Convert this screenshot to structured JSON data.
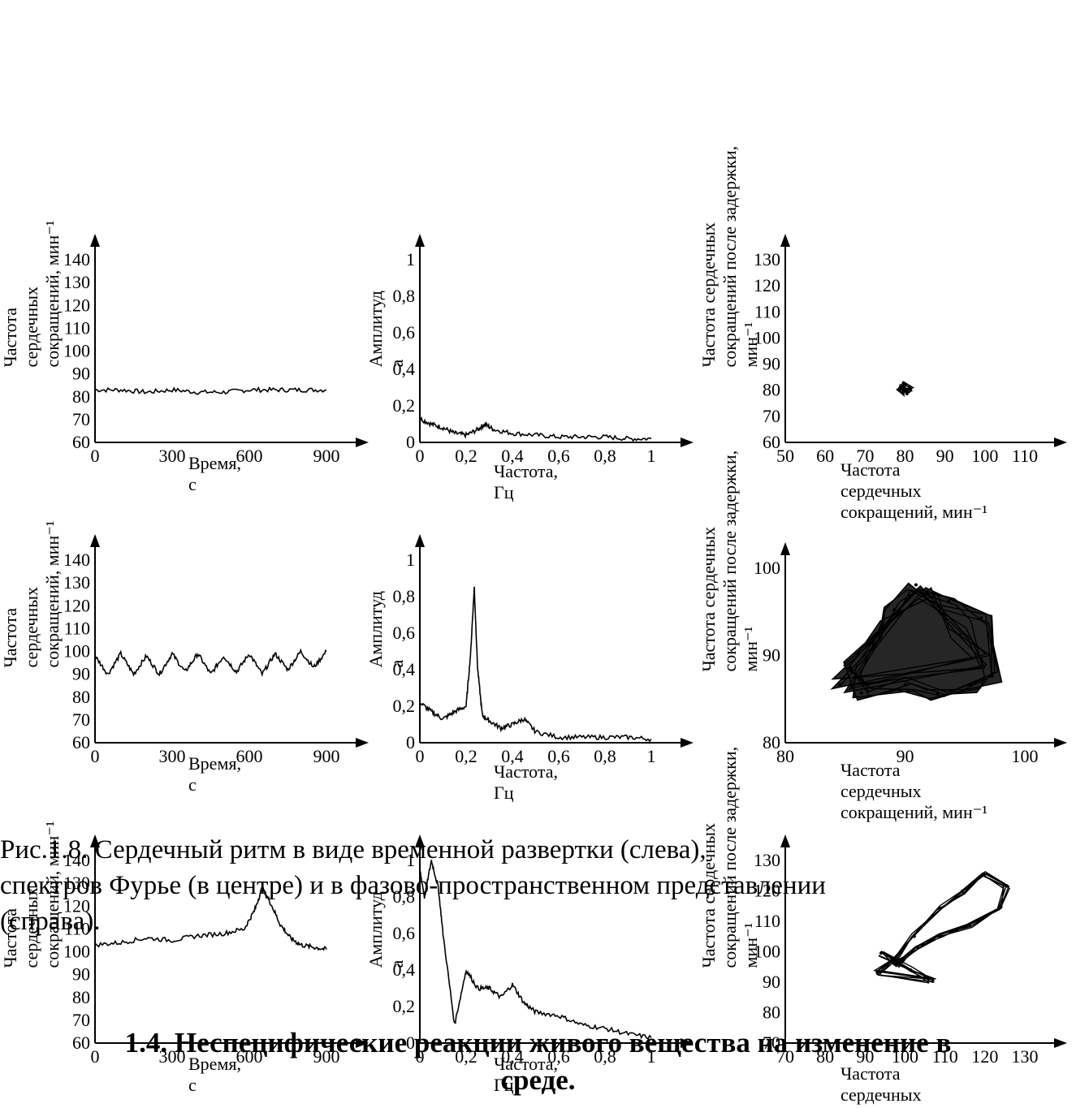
{
  "figure": {
    "caption_line_1": "Рис.1.8. Сердечный ритм в виде временной развертки (слева),",
    "caption_line_2": "спектров Фурье (в центре) и в фазово-пространственном представлении",
    "caption_line_3": "(справа)."
  },
  "section_heading": {
    "line_1": "1.4. Неспецифические реакции живого вещества на изменение в",
    "line_2": "среде."
  },
  "chart_data": [
    {
      "type": "line",
      "panel": "row1-time",
      "ylabel_lines": [
        "Частота",
        "сердечных",
        "сокращений, мин⁻¹"
      ],
      "xlabel_lines": [
        "Время,",
        "с"
      ],
      "x_ticks": [
        "0",
        "300",
        "600",
        "900"
      ],
      "y_ticks": [
        "60",
        "70",
        "80",
        "90",
        "100",
        "110",
        "120",
        "130",
        "140"
      ],
      "xlim": [
        0,
        900
      ],
      "ylim": [
        60,
        140
      ],
      "series": [
        {
          "x": [
            0,
            100,
            200,
            300,
            400,
            500,
            600,
            700,
            800,
            900
          ],
          "y": [
            83,
            83,
            82,
            83,
            82,
            82,
            83,
            83,
            83,
            83
          ]
        }
      ]
    },
    {
      "type": "line",
      "panel": "row1-spectrum",
      "ylabel_lines": [
        "Амплитуд",
        "а"
      ],
      "xlabel_lines": [
        "Частота,",
        "Гц"
      ],
      "x_ticks": [
        "0",
        "0,2",
        "0,4",
        "0,6",
        "0,8",
        "1"
      ],
      "y_ticks": [
        "0",
        "0,2",
        "0,4",
        "0,6",
        "0,8",
        "1"
      ],
      "xlim": [
        0,
        1
      ],
      "ylim": [
        0,
        1
      ],
      "series": [
        {
          "x": [
            0,
            0.05,
            0.1,
            0.15,
            0.2,
            0.25,
            0.28,
            0.32,
            0.4,
            0.5,
            0.6,
            0.7,
            0.8,
            0.9,
            1.0
          ],
          "y": [
            0.13,
            0.1,
            0.08,
            0.05,
            0.04,
            0.07,
            0.1,
            0.07,
            0.05,
            0.04,
            0.03,
            0.03,
            0.03,
            0.02,
            0.02
          ]
        }
      ]
    },
    {
      "type": "scatter",
      "panel": "row1-phase",
      "ylabel_lines": [
        "Частота сердечных",
        "сокращений после задержки,",
        "мин⁻¹"
      ],
      "xlabel_lines": [
        "Частота",
        "сердечных",
        "сокращений, мин⁻¹"
      ],
      "x_ticks": [
        "50",
        "60",
        "70",
        "80",
        "90",
        "100",
        "110"
      ],
      "y_ticks": [
        "60",
        "70",
        "80",
        "90",
        "100",
        "110",
        "120",
        "130"
      ],
      "xlim": [
        50,
        115
      ],
      "ylim": [
        60,
        135
      ],
      "series": [
        {
          "x": [
            81,
            82,
            83,
            84,
            82,
            83
          ],
          "y": [
            82,
            83,
            81,
            82,
            84,
            80
          ]
        }
      ]
    },
    {
      "type": "line",
      "panel": "row2-time",
      "ylabel_lines": [
        "Частота",
        "сердечных",
        "сокращений, мин⁻¹"
      ],
      "xlabel_lines": [
        "Время,",
        "с"
      ],
      "x_ticks": [
        "0",
        "300",
        "600",
        "900"
      ],
      "y_ticks": [
        "60",
        "70",
        "80",
        "90",
        "100",
        "110",
        "120",
        "130",
        "140"
      ],
      "xlim": [
        0,
        900
      ],
      "ylim": [
        60,
        140
      ],
      "series": [
        {
          "x": [
            0,
            50,
            100,
            150,
            200,
            250,
            300,
            350,
            400,
            450,
            500,
            550,
            600,
            650,
            700,
            750,
            800,
            850,
            900
          ],
          "y": [
            98,
            90,
            99,
            90,
            98,
            90,
            99,
            91,
            99,
            90,
            98,
            91,
            99,
            90,
            99,
            92,
            100,
            93,
            100
          ]
        }
      ]
    },
    {
      "type": "line",
      "panel": "row2-spectrum",
      "ylabel_lines": [
        "Амплитуд",
        "а"
      ],
      "xlabel_lines": [
        "Частота,",
        "Гц"
      ],
      "x_ticks": [
        "0",
        "0,2",
        "0,4",
        "0,6",
        "0,8",
        "1"
      ],
      "y_ticks": [
        "0",
        "0,2",
        "0,4",
        "0,6",
        "0,8",
        "1"
      ],
      "xlim": [
        0,
        1
      ],
      "ylim": [
        0,
        1
      ],
      "series": [
        {
          "x": [
            0,
            0.05,
            0.1,
            0.15,
            0.2,
            0.22,
            0.235,
            0.25,
            0.27,
            0.3,
            0.35,
            0.4,
            0.45,
            0.5,
            0.6,
            0.7,
            0.8,
            0.9,
            1.0
          ],
          "y": [
            0.22,
            0.17,
            0.13,
            0.17,
            0.2,
            0.5,
            0.85,
            0.4,
            0.15,
            0.12,
            0.08,
            0.1,
            0.13,
            0.06,
            0.03,
            0.03,
            0.03,
            0.03,
            0.02
          ]
        }
      ]
    },
    {
      "type": "scatter",
      "panel": "row2-phase",
      "ylabel_lines": [
        "Частота сердечных",
        "сокращений после задержки,",
        "мин⁻¹"
      ],
      "xlabel_lines": [
        "Частота",
        "сердечных",
        "сокращений, мин⁻¹"
      ],
      "x_ticks": [
        "80",
        "90",
        "100"
      ],
      "y_ticks": [
        "80",
        "90",
        "100"
      ],
      "xlim": [
        80,
        102
      ],
      "ylim": [
        80,
        101
      ],
      "series": [
        {
          "x": [
            85,
            88,
            90,
            92,
            95,
            98,
            99,
            97,
            94,
            91,
            87,
            86,
            89,
            93,
            96,
            98
          ],
          "y": [
            87,
            92,
            96,
            99,
            97,
            95,
            88,
            87,
            86,
            87,
            86,
            89,
            94,
            98,
            93,
            90
          ]
        }
      ]
    },
    {
      "type": "line",
      "panel": "row3-time",
      "ylabel_lines": [
        "Частота",
        "сердечных",
        "сокращений, мин⁻¹"
      ],
      "xlabel_lines": [
        "Время,",
        "с"
      ],
      "x_ticks": [
        "0",
        "300",
        "600",
        "900"
      ],
      "y_ticks": [
        "60",
        "70",
        "80",
        "90",
        "100",
        "110",
        "120",
        "130",
        "140"
      ],
      "xlim": [
        0,
        900
      ],
      "ylim": [
        60,
        140
      ],
      "series": [
        {
          "x": [
            0,
            100,
            200,
            300,
            400,
            500,
            580,
            620,
            650,
            680,
            720,
            760,
            800,
            850,
            900
          ],
          "y": [
            103,
            104,
            106,
            105,
            107,
            108,
            110,
            118,
            128,
            122,
            112,
            106,
            103,
            102,
            101
          ]
        }
      ]
    },
    {
      "type": "line",
      "panel": "row3-spectrum",
      "ylabel_lines": [
        "Амплитуд",
        "а"
      ],
      "xlabel_lines": [
        "Частота,",
        "Гц"
      ],
      "x_ticks": [
        "0",
        "0,2",
        "0,4",
        "0,6",
        "0,8",
        "1"
      ],
      "y_ticks": [
        "0",
        "0,2",
        "0,4",
        "0,6",
        "0,8",
        "1"
      ],
      "xlim": [
        0,
        1
      ],
      "ylim": [
        0,
        1
      ],
      "series": [
        {
          "x": [
            0,
            0.02,
            0.05,
            0.08,
            0.1,
            0.15,
            0.2,
            0.25,
            0.3,
            0.35,
            0.4,
            0.45,
            0.5,
            0.6,
            0.7,
            0.8,
            0.9,
            1.0
          ],
          "y": [
            0.95,
            0.8,
            1.0,
            0.85,
            0.6,
            0.1,
            0.4,
            0.3,
            0.3,
            0.25,
            0.32,
            0.22,
            0.17,
            0.15,
            0.1,
            0.08,
            0.05,
            0.03
          ]
        }
      ]
    },
    {
      "type": "scatter",
      "panel": "row3-phase",
      "ylabel_lines": [
        "Частота сердечных",
        "сокращений после задержки,",
        "мин⁻¹"
      ],
      "xlabel_lines": [
        "Частота",
        "сердечных"
      ],
      "x_ticks": [
        "70",
        "80",
        "90",
        "100",
        "110",
        "120",
        "130"
      ],
      "y_ticks": [
        "70",
        "80",
        "90",
        "100",
        "110",
        "120",
        "130"
      ],
      "xlim": [
        70,
        135
      ],
      "ylim": [
        70,
        135
      ],
      "series": [
        {
          "x": [
            95,
            100,
            105,
            112,
            118,
            124,
            130,
            128,
            120,
            112,
            106,
            100,
            96,
            104,
            110
          ],
          "y": [
            95,
            100,
            108,
            118,
            124,
            130,
            126,
            118,
            112,
            108,
            104,
            98,
            102,
            96,
            92
          ]
        }
      ]
    }
  ]
}
